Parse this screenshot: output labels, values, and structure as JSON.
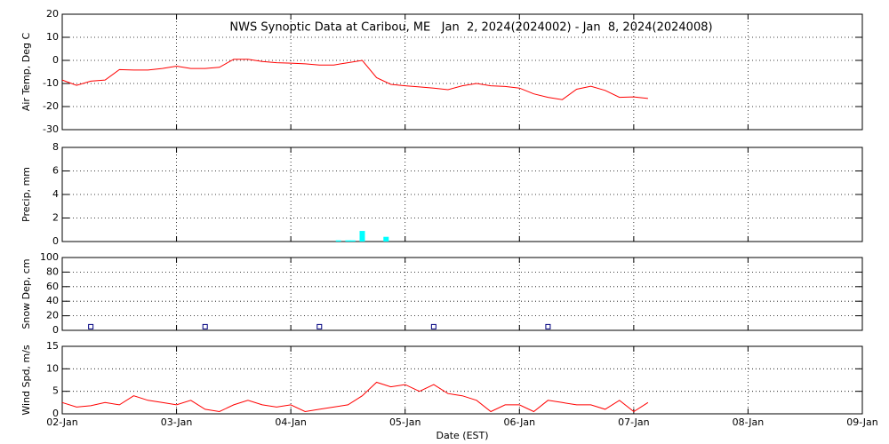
{
  "chart_data": [
    {
      "type": "line",
      "title": "NWS Synoptic Data at Caribou, ME   Jan  2, 2024(2024002) - Jan  8, 2024(2024008)",
      "ylabel": "Air Temp, Deg C",
      "ylim": [
        -30,
        20
      ],
      "yticks": [
        -30,
        -20,
        -10,
        0,
        10,
        20
      ],
      "grid": true,
      "xlim": [
        "2024-01-02T00:00",
        "2024-01-09T00:00"
      ],
      "xticks": [
        "2024-01-02T00:00",
        "2024-01-03T00:00",
        "2024-01-04T00:00",
        "2024-01-05T00:00",
        "2024-01-06T00:00",
        "2024-01-07T00:00",
        "2024-01-08T00:00",
        "2024-01-09T00:00"
      ],
      "series": [
        {
          "name": "Air Temp",
          "color": "#ff0000",
          "x": [
            "2024-01-02T00:00",
            "2024-01-02T03:00",
            "2024-01-02T06:00",
            "2024-01-02T09:00",
            "2024-01-02T12:00",
            "2024-01-02T15:00",
            "2024-01-02T18:00",
            "2024-01-02T21:00",
            "2024-01-03T00:00",
            "2024-01-03T03:00",
            "2024-01-03T06:00",
            "2024-01-03T09:00",
            "2024-01-03T12:00",
            "2024-01-03T15:00",
            "2024-01-03T18:00",
            "2024-01-03T21:00",
            "2024-01-04T00:00",
            "2024-01-04T03:00",
            "2024-01-04T06:00",
            "2024-01-04T09:00",
            "2024-01-04T12:00",
            "2024-01-04T15:00",
            "2024-01-04T18:00",
            "2024-01-04T21:00",
            "2024-01-05T00:00",
            "2024-01-05T03:00",
            "2024-01-05T06:00",
            "2024-01-05T09:00",
            "2024-01-05T12:00",
            "2024-01-05T15:00",
            "2024-01-05T18:00",
            "2024-01-05T21:00",
            "2024-01-06T00:00",
            "2024-01-06T03:00",
            "2024-01-06T06:00",
            "2024-01-06T09:00",
            "2024-01-06T12:00",
            "2024-01-06T15:00",
            "2024-01-06T18:00",
            "2024-01-06T21:00",
            "2024-01-07T00:00",
            "2024-01-07T03:00"
          ],
          "values": [
            -8.5,
            -10.8,
            -9,
            -8.5,
            -4,
            -4.2,
            -4.2,
            -3.5,
            -2.5,
            -3.5,
            -3.5,
            -3,
            0.5,
            0.5,
            -0.5,
            -1,
            -1.2,
            -1.5,
            -2,
            -2,
            -1,
            0,
            -7.5,
            -10.4,
            -11,
            -11.5,
            -12,
            -12.7,
            -11,
            -10,
            -11,
            -11.3,
            -12,
            -14.5,
            -16,
            -17,
            -12.5,
            -11.2,
            -13,
            -16,
            -15.8,
            -16.5
          ]
        }
      ]
    },
    {
      "type": "bar",
      "ylabel": "Precip, mm",
      "ylim": [
        0,
        8
      ],
      "yticks": [
        0,
        2,
        4,
        6,
        8
      ],
      "grid": true,
      "xlim": [
        "2024-01-02T00:00",
        "2024-01-09T00:00"
      ],
      "xticks": [
        "2024-01-02T00:00",
        "2024-01-03T00:00",
        "2024-01-04T00:00",
        "2024-01-05T00:00",
        "2024-01-06T00:00",
        "2024-01-07T00:00",
        "2024-01-08T00:00",
        "2024-01-09T00:00"
      ],
      "series": [
        {
          "name": "Precip",
          "color": "#00ffff",
          "x": [
            "2024-01-04T10:00",
            "2024-01-04T12:00",
            "2024-01-04T13:00",
            "2024-01-04T15:00",
            "2024-01-04T20:00"
          ],
          "values": [
            0.1,
            0.1,
            0.1,
            0.9,
            0.4
          ]
        }
      ]
    },
    {
      "type": "scatter",
      "ylabel": "Snow Dep, cm",
      "ylim": [
        0,
        100
      ],
      "yticks": [
        0,
        20,
        40,
        60,
        80,
        100
      ],
      "grid": true,
      "xlim": [
        "2024-01-02T00:00",
        "2024-01-09T00:00"
      ],
      "xticks": [
        "2024-01-02T00:00",
        "2024-01-03T00:00",
        "2024-01-04T00:00",
        "2024-01-05T00:00",
        "2024-01-06T00:00",
        "2024-01-07T00:00",
        "2024-01-08T00:00",
        "2024-01-09T00:00"
      ],
      "series": [
        {
          "name": "Snow Depth",
          "color": "#000080",
          "x": [
            "2024-01-02T06:00",
            "2024-01-03T06:00",
            "2024-01-04T06:00",
            "2024-01-05T06:00",
            "2024-01-06T06:00"
          ],
          "values": [
            5,
            5,
            5,
            5,
            5
          ]
        }
      ]
    },
    {
      "type": "line",
      "ylabel": "Wind Spd, m/s",
      "xlabel": "Date (EST)",
      "ylim": [
        0,
        15
      ],
      "yticks": [
        0,
        5,
        10,
        15
      ],
      "grid": true,
      "xlim": [
        "2024-01-02T00:00",
        "2024-01-09T00:00"
      ],
      "xticks": [
        {
          "value": "2024-01-02T00:00",
          "label": "02-Jan"
        },
        {
          "value": "2024-01-03T00:00",
          "label": "03-Jan"
        },
        {
          "value": "2024-01-04T00:00",
          "label": "04-Jan"
        },
        {
          "value": "2024-01-05T00:00",
          "label": "05-Jan"
        },
        {
          "value": "2024-01-06T00:00",
          "label": "06-Jan"
        },
        {
          "value": "2024-01-07T00:00",
          "label": "07-Jan"
        },
        {
          "value": "2024-01-08T00:00",
          "label": "08-Jan"
        },
        {
          "value": "2024-01-09T00:00",
          "label": "09-Jan"
        }
      ],
      "series": [
        {
          "name": "Wind Speed",
          "color": "#ff0000",
          "x": [
            "2024-01-02T00:00",
            "2024-01-02T03:00",
            "2024-01-02T06:00",
            "2024-01-02T09:00",
            "2024-01-02T12:00",
            "2024-01-02T15:00",
            "2024-01-02T18:00",
            "2024-01-02T21:00",
            "2024-01-03T00:00",
            "2024-01-03T03:00",
            "2024-01-03T06:00",
            "2024-01-03T09:00",
            "2024-01-03T12:00",
            "2024-01-03T15:00",
            "2024-01-03T18:00",
            "2024-01-03T21:00",
            "2024-01-04T00:00",
            "2024-01-04T03:00",
            "2024-01-04T06:00",
            "2024-01-04T09:00",
            "2024-01-04T12:00",
            "2024-01-04T15:00",
            "2024-01-04T18:00",
            "2024-01-04T21:00",
            "2024-01-05T00:00",
            "2024-01-05T03:00",
            "2024-01-05T06:00",
            "2024-01-05T09:00",
            "2024-01-05T12:00",
            "2024-01-05T15:00",
            "2024-01-05T18:00",
            "2024-01-05T21:00",
            "2024-01-06T00:00",
            "2024-01-06T03:00",
            "2024-01-06T06:00",
            "2024-01-06T09:00",
            "2024-01-06T12:00",
            "2024-01-06T15:00",
            "2024-01-06T18:00",
            "2024-01-06T21:00",
            "2024-01-07T00:00",
            "2024-01-07T03:00"
          ],
          "values": [
            2.5,
            1.5,
            1.8,
            2.5,
            2,
            4,
            3,
            2.5,
            2,
            3,
            1,
            0.5,
            2,
            3,
            2,
            1.5,
            2,
            0.5,
            1,
            1.5,
            2,
            4,
            7,
            6,
            6.5,
            5,
            6.5,
            4.5,
            4,
            3,
            0.5,
            2,
            2,
            0.5,
            3,
            2.5,
            2,
            2,
            1,
            3,
            0.5,
            2.5
          ]
        }
      ]
    }
  ]
}
